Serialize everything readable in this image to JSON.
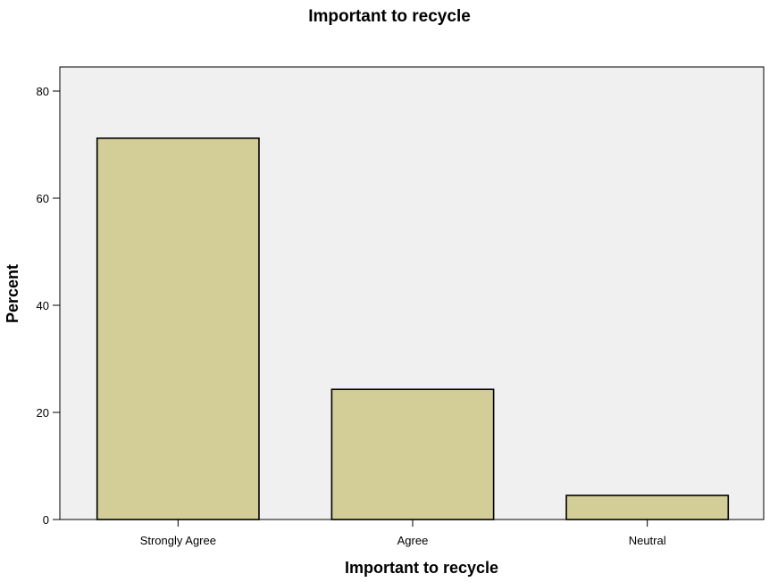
{
  "chart_data": {
    "type": "bar",
    "title": "Important to recycle",
    "xlabel": "Important to recycle",
    "ylabel": "Percent",
    "categories": [
      "Strongly Agree",
      "Agree",
      "Neutral"
    ],
    "values": [
      71.2,
      24.3,
      4.5
    ],
    "ylim": [
      0,
      80
    ],
    "yticks": [
      0,
      20,
      40,
      60,
      80
    ],
    "grid": false,
    "legend": "none",
    "colors": {
      "bar_fill": "#d3ce98",
      "bar_stroke": "#000000",
      "plot_background": "#f0f0f0",
      "axis": "#000000"
    }
  }
}
